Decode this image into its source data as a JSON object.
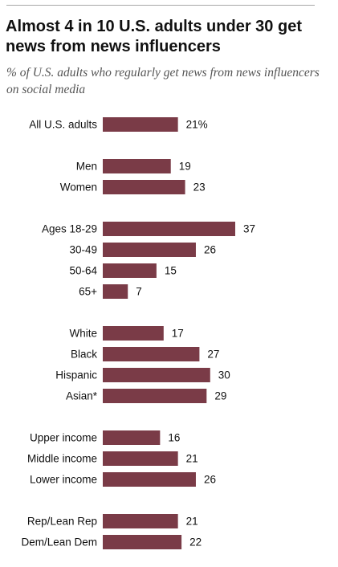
{
  "header": {
    "title": "Almost 4 in 10 U.S. adults under 30 get news from news influencers",
    "subtitle": "% of U.S. adults who regularly get news from news influencers on social media"
  },
  "colors": {
    "bar": "#7a3b47",
    "text": "#111111",
    "subtitle": "#555555"
  },
  "chart_data": {
    "type": "bar",
    "orientation": "horizontal",
    "title": "Almost 4 in 10 U.S. adults under 30 get news from news influencers",
    "subtitle": "% of U.S. adults who regularly get news from news influencers on social media",
    "xlim": [
      0,
      37
    ],
    "grid": false,
    "groups": [
      {
        "rows": [
          {
            "label": "All U.S. adults",
            "value": 21,
            "display": "21%"
          }
        ]
      },
      {
        "rows": [
          {
            "label": "Men",
            "value": 19,
            "display": "19"
          },
          {
            "label": "Women",
            "value": 23,
            "display": "23"
          }
        ]
      },
      {
        "rows": [
          {
            "label": "Ages 18-29",
            "value": 37,
            "display": "37"
          },
          {
            "label": "30-49",
            "value": 26,
            "display": "26"
          },
          {
            "label": "50-64",
            "value": 15,
            "display": "15"
          },
          {
            "label": "65+",
            "value": 7,
            "display": "7"
          }
        ]
      },
      {
        "rows": [
          {
            "label": "White",
            "value": 17,
            "display": "17"
          },
          {
            "label": "Black",
            "value": 27,
            "display": "27"
          },
          {
            "label": "Hispanic",
            "value": 30,
            "display": "30"
          },
          {
            "label": "Asian*",
            "value": 29,
            "display": "29"
          }
        ]
      },
      {
        "rows": [
          {
            "label": "Upper income",
            "value": 16,
            "display": "16"
          },
          {
            "label": "Middle income",
            "value": 21,
            "display": "21"
          },
          {
            "label": "Lower income",
            "value": 26,
            "display": "26"
          }
        ]
      },
      {
        "rows": [
          {
            "label": "Rep/Lean Rep",
            "value": 21,
            "display": "21"
          },
          {
            "label": "Dem/Lean Dem",
            "value": 22,
            "display": "22"
          }
        ]
      }
    ]
  }
}
